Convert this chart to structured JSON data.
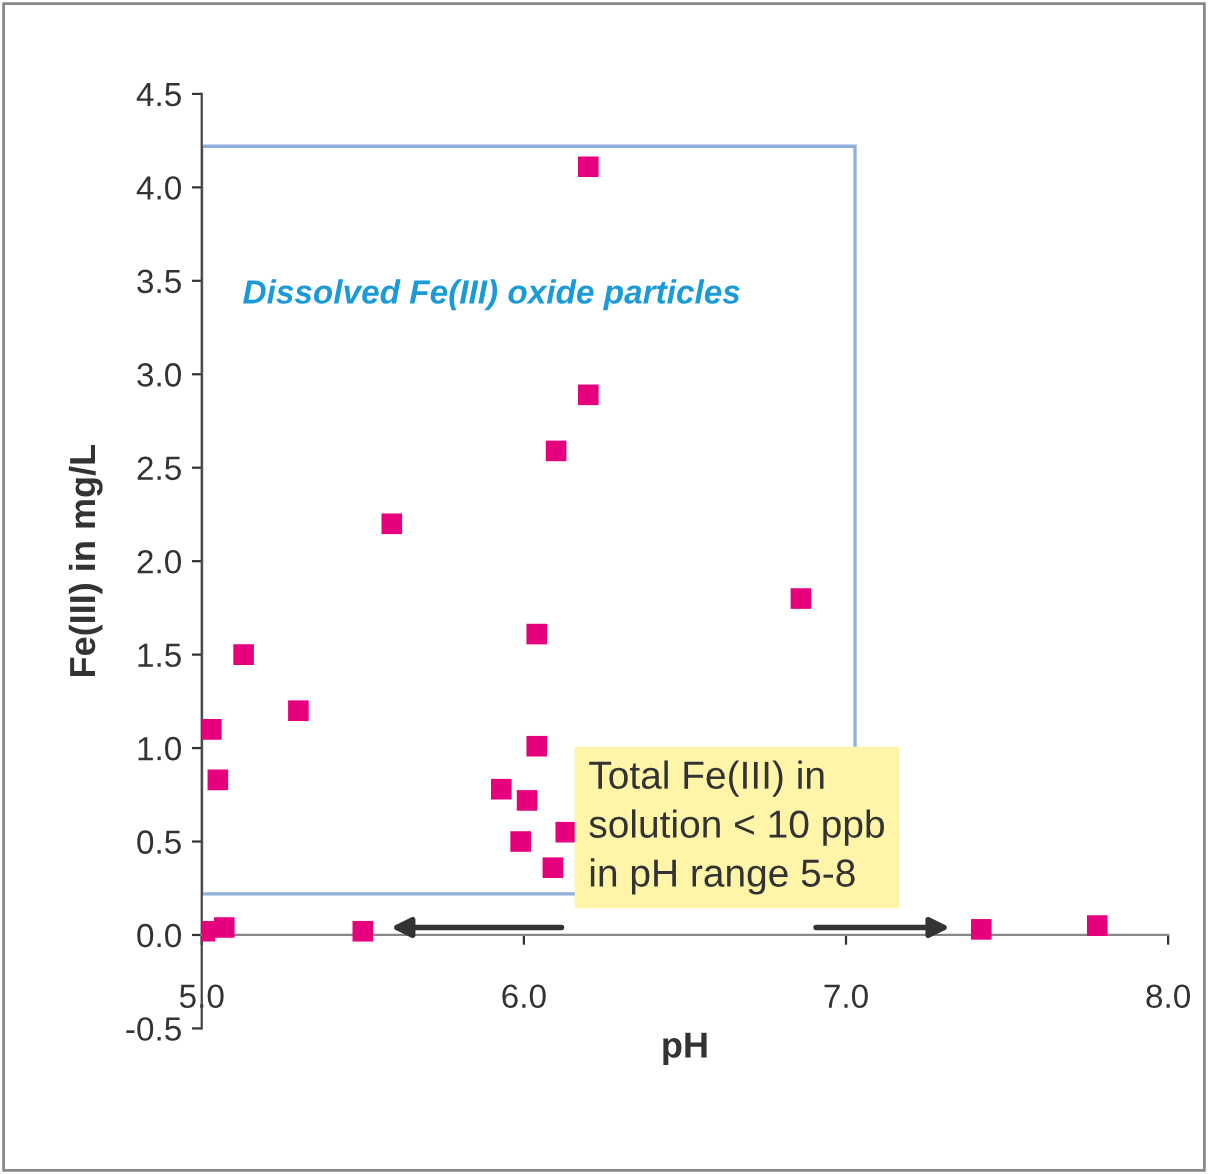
{
  "chart_data": {
    "type": "scatter",
    "xlabel": "pH",
    "ylabel": "Fe(III) in mg/L",
    "series": [
      {
        "color": "#e6007e",
        "x": [
          6.2,
          6.2,
          6.1,
          5.59,
          6.86,
          6.04,
          5.13,
          5.3,
          5.03,
          6.04,
          5.05,
          5.93,
          6.01,
          5.99,
          6.13,
          6.09,
          5.07,
          5.5,
          5.01,
          7.42,
          7.78
        ],
        "values": [
          4.11,
          2.89,
          2.59,
          2.2,
          1.8,
          1.61,
          1.5,
          1.2,
          1.1,
          1.01,
          0.83,
          0.78,
          0.72,
          0.5,
          0.55,
          0.36,
          0.04,
          0.02,
          0.02,
          0.03,
          0.05
        ]
      }
    ],
    "marker": "square",
    "xlim": [
      5.0,
      8.0
    ],
    "xticks": [
      {
        "value": 5.0,
        "label": "5.0"
      },
      {
        "value": 6.0,
        "label": "6.0"
      },
      {
        "value": 7.0,
        "label": "7.0"
      },
      {
        "value": 8.0,
        "label": "8.0"
      }
    ],
    "ylim": [
      -0.5,
      4.5
    ],
    "yticks": [
      {
        "value": -0.5,
        "label": "-0.5"
      },
      {
        "value": 0.0,
        "label": "0.0"
      },
      {
        "value": 0.5,
        "label": "0.5"
      },
      {
        "value": 1.0,
        "label": "1.0"
      },
      {
        "value": 1.5,
        "label": "1.5"
      },
      {
        "value": 2.0,
        "label": "2.0"
      },
      {
        "value": 2.5,
        "label": "2.5"
      },
      {
        "value": 3.0,
        "label": "3.0"
      },
      {
        "value": 3.5,
        "label": "3.5"
      },
      {
        "value": 4.0,
        "label": "4.0"
      },
      {
        "value": 4.5,
        "label": "4.5"
      }
    ],
    "annotations": [
      "Dissolved Fe(III) oxide particles",
      "Total Fe(III) in\nsolution < 10 ppb\nin pH range 5-8"
    ]
  }
}
